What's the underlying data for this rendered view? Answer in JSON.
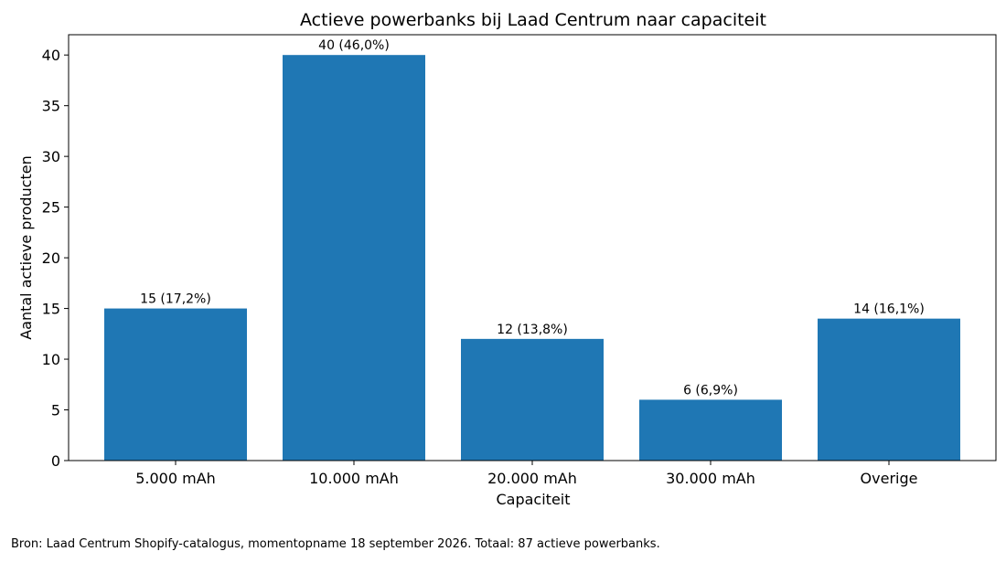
{
  "chart_data": {
    "type": "bar",
    "title": "Actieve powerbanks bij Laad Centrum naar capaciteit",
    "xlabel": "Capaciteit",
    "ylabel": "Aantal actieve producten",
    "categories": [
      "5.000 mAh",
      "10.000 mAh",
      "20.000 mAh",
      "30.000 mAh",
      "Overige"
    ],
    "values": [
      15,
      40,
      12,
      6,
      14
    ],
    "data_labels": [
      "15 (17,2%)",
      "40 (46,0%)",
      "12 (13,8%)",
      "6 (6,9%)",
      "14 (16,1%)"
    ],
    "ylim": [
      0,
      42
    ],
    "yticks": [
      0,
      5,
      10,
      15,
      20,
      25,
      30,
      35,
      40
    ],
    "grid": false,
    "bar_color": "#1f77b4"
  },
  "footer": {
    "source_note": "Bron: Laad Centrum Shopify-catalogus, momentopname 18 september 2026. Totaal: 87 actieve powerbanks."
  }
}
